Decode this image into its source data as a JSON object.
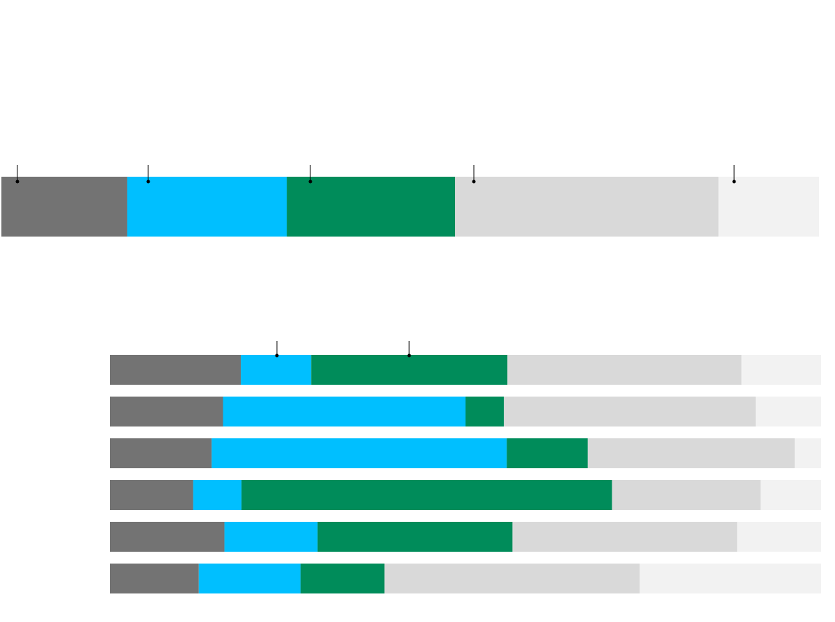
{
  "chart_data": [
    {
      "type": "bar",
      "orientation": "horizontal",
      "stacked": true,
      "xlim": [
        0,
        100
      ],
      "series": [
        {
          "color": "#737373",
          "values": [
            15.4
          ]
        },
        {
          "color": "#00bfff",
          "values": [
            19.5
          ]
        },
        {
          "color": "#008c5a",
          "values": [
            20.6
          ]
        },
        {
          "color": "#d9d9d9",
          "values": [
            32.2
          ]
        },
        {
          "color": "#f2f2f2",
          "values": [
            12.3
          ]
        }
      ]
    },
    {
      "type": "bar",
      "orientation": "horizontal",
      "stacked": true,
      "xlim": [
        0,
        100
      ],
      "categories": [
        null,
        null,
        null,
        null,
        null,
        null
      ],
      "series": [
        {
          "color": "#737373",
          "values": [
            18.4,
            15.9,
            14.3,
            11.7,
            16.1,
            12.5
          ]
        },
        {
          "color": "#00bfff",
          "values": [
            9.9,
            34.1,
            41.5,
            6.8,
            13.1,
            14.3
          ]
        },
        {
          "color": "#008c5a",
          "values": [
            27.6,
            5.4,
            11.4,
            52.1,
            27.4,
            11.8
          ]
        },
        {
          "color": "#d9d9d9",
          "values": [
            32.9,
            35.4,
            29.1,
            20.9,
            31.6,
            35.9
          ]
        },
        {
          "color": "#f2f2f2",
          "values": [
            11.2,
            9.2,
            3.7,
            8.5,
            11.8,
            25.5
          ]
        }
      ]
    }
  ]
}
